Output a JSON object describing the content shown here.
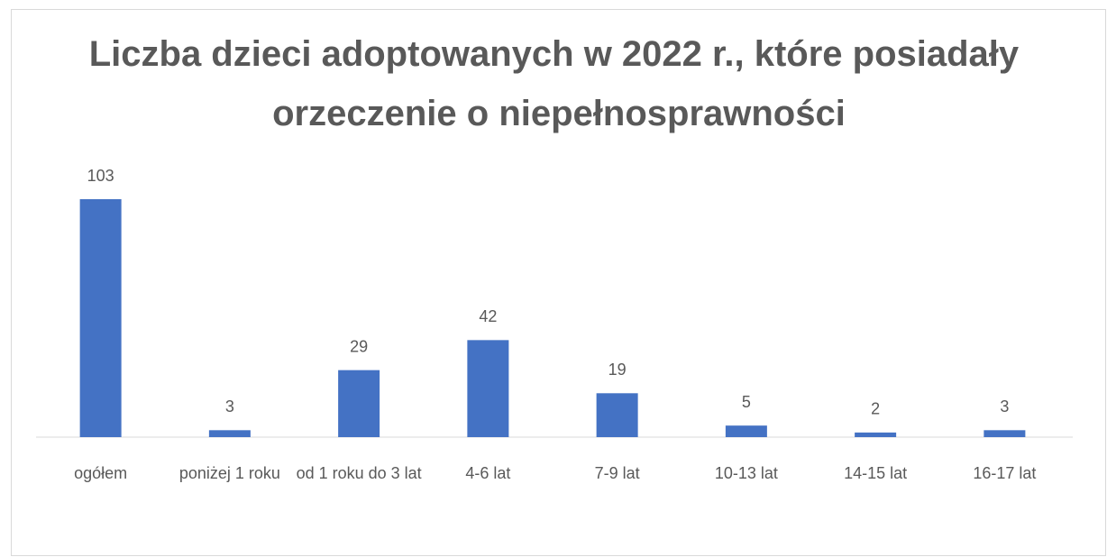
{
  "chart_data": {
    "type": "bar",
    "title": "Liczba dzieci adoptowanych w 2022 r., które posiadały orzeczenie o niepełnosprawności",
    "categories": [
      "ogółem",
      "poniżej 1 roku",
      "od 1 roku do 3 lat",
      "4-6 lat",
      "7-9 lat",
      "10-13 lat",
      "14-15 lat",
      "16-17 lat"
    ],
    "values": [
      103,
      3,
      29,
      42,
      19,
      5,
      2,
      3
    ],
    "color": "#4472c4"
  }
}
